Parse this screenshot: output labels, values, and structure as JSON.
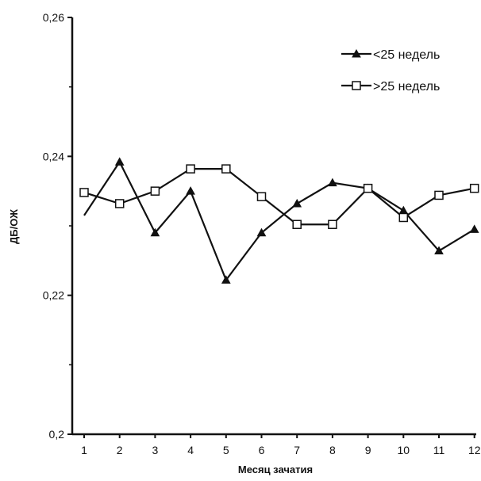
{
  "chart_data": {
    "type": "line",
    "xlabel": "Месяц зачатия",
    "ylabel": "ДБ/ОЖ",
    "x": [
      1,
      2,
      3,
      4,
      5,
      6,
      7,
      8,
      9,
      10,
      11,
      12
    ],
    "x_tick_labels": [
      "1",
      "2",
      "3",
      "4",
      "5",
      "6",
      "7",
      "8",
      "9",
      "10",
      "11",
      "12"
    ],
    "ylim": [
      0.2,
      0.26
    ],
    "y_ticks": [
      0.2,
      0.22,
      0.24,
      0.26
    ],
    "y_tick_labels": [
      "0,2",
      "0,22",
      "0,24",
      "0,26"
    ],
    "grid": false,
    "legend_position": "top-right",
    "series": [
      {
        "name": "<25 недель",
        "marker": "triangle",
        "color": "#111111",
        "values": [
          0.2315,
          0.2392,
          0.229,
          0.235,
          0.2222,
          0.229,
          0.2332,
          0.2362,
          0.2354,
          0.2322,
          0.2264,
          0.2295
        ]
      },
      {
        "name": ">25 недель",
        "marker": "square",
        "color": "#111111",
        "values": [
          0.2348,
          0.2332,
          0.235,
          0.2382,
          0.2382,
          0.2342,
          0.2302,
          0.2302,
          0.2354,
          0.2312,
          0.2344,
          0.2354
        ]
      }
    ]
  }
}
